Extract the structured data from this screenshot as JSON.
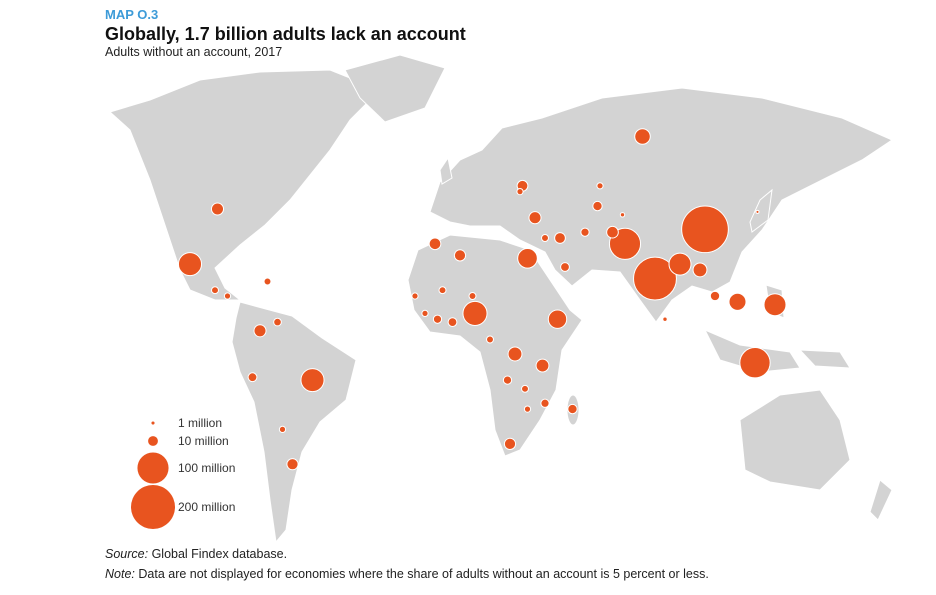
{
  "header": {
    "label": "MAP O.3",
    "title": "Globally, 1.7 billion adults lack an account",
    "subtitle": "Adults without an account, 2017"
  },
  "legend": {
    "sizes": [
      {
        "value": 1,
        "label": "1 million"
      },
      {
        "value": 10,
        "label": "10 million"
      },
      {
        "value": 100,
        "label": "100 million"
      },
      {
        "value": 200,
        "label": "200 million"
      }
    ]
  },
  "bubbles": [
    {
      "lon": 106,
      "lat": 33,
      "value": 225
    },
    {
      "lon": 86,
      "lat": 16,
      "value": 190
    },
    {
      "lon": 126,
      "lat": -13,
      "value": 95
    },
    {
      "lon": 74,
      "lat": 28,
      "value": 100
    },
    {
      "lon": 14,
      "lat": 4,
      "value": 60
    },
    {
      "lon": -100,
      "lat": 21,
      "value": 55
    },
    {
      "lon": 96,
      "lat": 21,
      "value": 50
    },
    {
      "lon": 35,
      "lat": 23,
      "value": 40
    },
    {
      "lon": -51,
      "lat": -19,
      "value": 55
    },
    {
      "lon": 134,
      "lat": 7,
      "value": 50
    },
    {
      "lon": 119,
      "lat": 8,
      "value": 30
    },
    {
      "lon": 47,
      "lat": 2,
      "value": 35
    },
    {
      "lon": 104,
      "lat": 19,
      "value": 20
    },
    {
      "lon": 81,
      "lat": 65,
      "value": 25
    },
    {
      "lon": -72,
      "lat": -2,
      "value": 15
    },
    {
      "lon": 30,
      "lat": -10,
      "value": 20
    },
    {
      "lon": 41,
      "lat": -14,
      "value": 17
    },
    {
      "lon": -89,
      "lat": 40,
      "value": 15
    },
    {
      "lon": 38,
      "lat": 37,
      "value": 15
    },
    {
      "lon": 48,
      "lat": 30,
      "value": 12
    },
    {
      "lon": -2,
      "lat": 28,
      "value": 14
    },
    {
      "lon": 8,
      "lat": 24,
      "value": 13
    },
    {
      "lon": 69,
      "lat": 32,
      "value": 14
    },
    {
      "lon": 63,
      "lat": 41,
      "value": 9
    },
    {
      "lon": 110,
      "lat": 10,
      "value": 9
    },
    {
      "lon": -75,
      "lat": -18,
      "value": 8
    },
    {
      "lon": -59,
      "lat": -48,
      "value": 13
    },
    {
      "lon": -63,
      "lat": -36,
      "value": 4
    },
    {
      "lon": 28,
      "lat": -41,
      "value": 13
    },
    {
      "lon": 42,
      "lat": -27,
      "value": 7
    },
    {
      "lon": 53,
      "lat": -29,
      "value": 9
    },
    {
      "lon": 5,
      "lat": 1,
      "value": 8
    },
    {
      "lon": -1,
      "lat": 2,
      "value": 7
    },
    {
      "lon": 33,
      "lat": 48,
      "value": 12
    },
    {
      "lon": -65,
      "lat": 1,
      "value": 6
    },
    {
      "lon": 64,
      "lat": 48,
      "value": 4
    },
    {
      "lon": 90,
      "lat": 2,
      "value": 2
    },
    {
      "lon": 50,
      "lat": 20,
      "value": 8
    },
    {
      "lon": 42,
      "lat": 30,
      "value": 5
    },
    {
      "lon": -90,
      "lat": 12,
      "value": 5
    },
    {
      "lon": -85,
      "lat": 10,
      "value": 4
    },
    {
      "lon": -69,
      "lat": 15,
      "value": 5
    },
    {
      "lon": 20,
      "lat": -5,
      "value": 5
    },
    {
      "lon": 27,
      "lat": -19,
      "value": 7
    },
    {
      "lon": 34,
      "lat": -22,
      "value": 5
    },
    {
      "lon": 35,
      "lat": -29,
      "value": 4
    },
    {
      "lon": 13,
      "lat": 10,
      "value": 5
    },
    {
      "lon": 1,
      "lat": 12,
      "value": 5
    },
    {
      "lon": -10,
      "lat": 10,
      "value": 4
    },
    {
      "lon": -6,
      "lat": 4,
      "value": 4
    },
    {
      "lon": 32,
      "lat": 46,
      "value": 4
    },
    {
      "lon": 127,
      "lat": 39,
      "value": 1
    },
    {
      "lon": 73,
      "lat": 38,
      "value": 2
    },
    {
      "lon": 58,
      "lat": 32,
      "value": 7
    }
  ],
  "footer": {
    "source_label": "Source:",
    "source": " Global Findex database.",
    "note_label": "Note:",
    "note": " Data are not displayed for economies where the share of adults without an account is 5 percent or less."
  }
}
